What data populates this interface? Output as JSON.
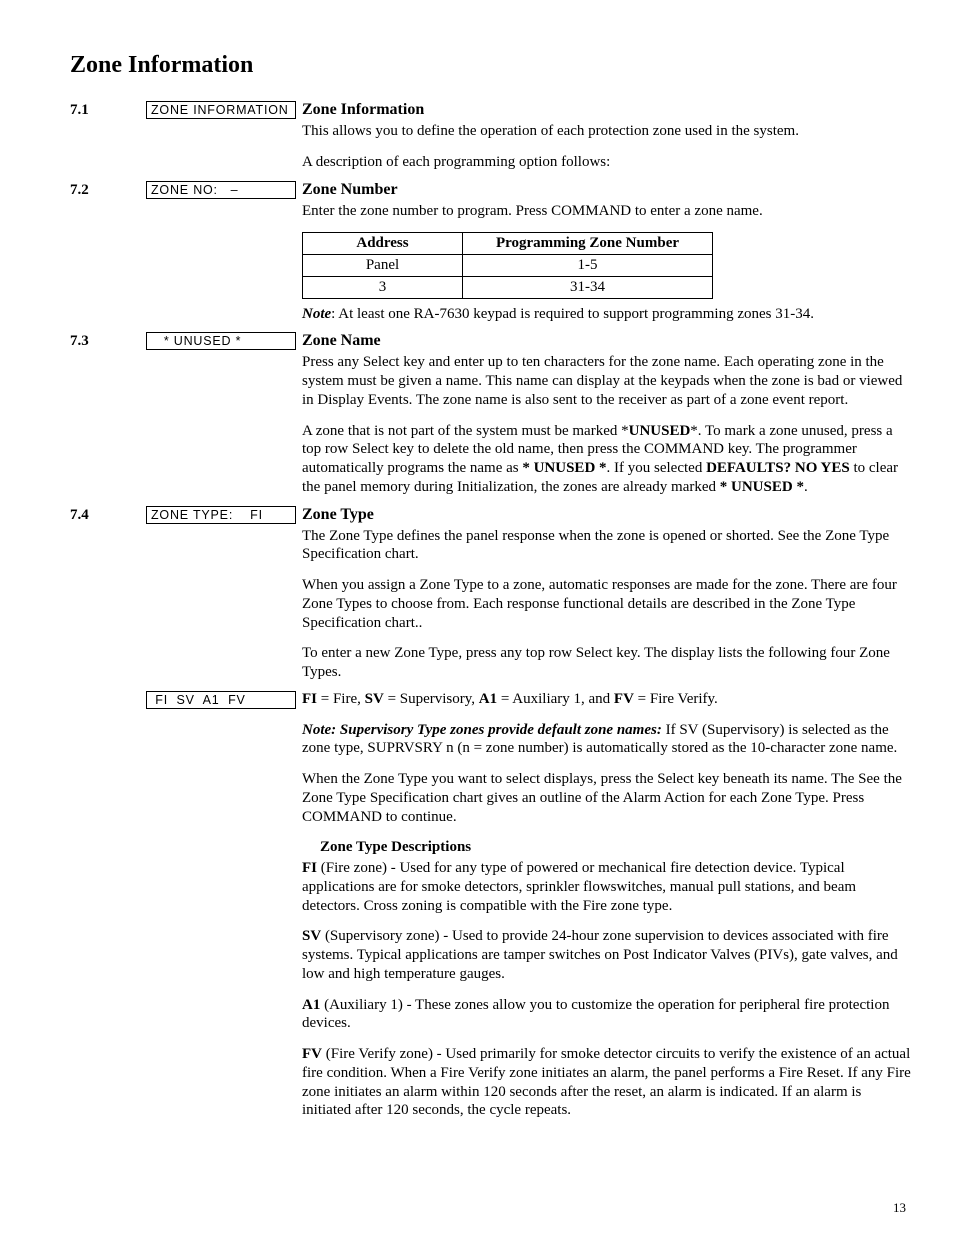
{
  "page_title": "Zone Information",
  "page_number": "13",
  "sections": {
    "s71": {
      "num": "7.1",
      "lcd": "ZONE INFORMATION",
      "heading": "Zone Information",
      "p1": "This allows you to define the operation of each protection zone used in the system.",
      "p2": "A description of each programming option follows:"
    },
    "s72": {
      "num": "7.2",
      "lcd": "ZONE NO:   –",
      "heading": "Zone Number",
      "p1": "Enter the zone number to program.  Press COMMAND to enter a zone name.",
      "table": {
        "h1": "Address",
        "h2": "Programming Zone Number",
        "r1c1": "Panel",
        "r1c2": "1-5",
        "r2c1": "3",
        "r2c2": "31-34"
      },
      "note_label": "Note",
      "note_rest": ": At least one RA-7630 keypad is required to support programming zones 31-34."
    },
    "s73": {
      "num": "7.3",
      "lcd": "   * UNUSED *",
      "heading": "Zone Name",
      "p1": "Press any Select key and enter up to ten characters for the zone name. Each operating zone in the system must be given a name. This name can display at the keypads when the zone is bad or viewed in Display Events. The zone name is also sent to the receiver as part of a zone event report.",
      "p2a": "A zone that is not part of the system must be marked *",
      "p2b": "UNUSED",
      "p2c": "*. To mark a zone unused, press a top row Select key to delete the old name, then press the COMMAND key. The programmer automatically programs the name as ",
      "p2d": "* UNUSED *",
      "p2e": ". If you selected ",
      "p2f": "DEFAULTS? NO YES",
      "p2g": " to clear the panel memory during Initialization, the zones are already marked ",
      "p2h": "* UNUSED *",
      "p2i": "."
    },
    "s74": {
      "num": "7.4",
      "lcd": "ZONE TYPE:    FI",
      "heading": "Zone Type",
      "p1": "The Zone Type defines the panel response when the zone is opened or shorted. See the Zone Type Specification chart.",
      "p2": "When you assign a Zone Type to a zone, automatic responses are made for the zone. There are four Zone Types to choose from. Each response functional details are described in the Zone Type Specification chart..",
      "p3": "To enter a new Zone Type, press any top row Select key. The display lists the following four Zone Types.",
      "lcd2": " FI  SV  A1  FV",
      "legend_FI": "FI",
      "legend_FI_t": " = Fire, ",
      "legend_SV": "SV",
      "legend_SV_t": " = Supervisory, ",
      "legend_A1": "A1",
      "legend_A1_t": " = Auxiliary 1, and ",
      "legend_FV": "FV",
      "legend_FV_t": " = Fire Verify.",
      "note2_b": "Note",
      "note2_bi": ": Supervisory Type zones provide default zone names:",
      "note2_rest": " If SV (Supervisory) is selected as the zone type, SUPRVSRY  n (n = zone number) is automatically stored as the 10-character zone name.",
      "p5": "When the Zone Type you want to select displays, press the Select key beneath its name. The See the Zone Type Specification chart gives an outline of the Alarm Action for each Zone Type. Press COMMAND to continue.",
      "subhead": "Zone Type Descriptions",
      "d_FI_b": "FI",
      "d_FI": " (Fire zone) - Used for any type of powered or mechanical fire detection device. Typical applications are for smoke detectors, sprinkler flowswitches, manual pull stations, and beam detectors. Cross zoning is compatible with the Fire zone type.",
      "d_SV_b": "SV",
      "d_SV": " (Supervisory zone) - Used to provide 24-hour zone supervision to devices associated with fire systems. Typical applications are tamper switches on Post Indicator Valves (PIVs), gate valves, and low and high temperature gauges.",
      "d_A1_b": "A1",
      "d_A1": " (Auxiliary 1) - These zones allow you to customize the operation for peripheral fire protection devices.",
      "d_FV_b": "FV",
      "d_FV": " (Fire Verify zone) - Used primarily for smoke detector circuits to verify the existence of an actual fire condition. When a Fire Verify zone initiates an alarm, the panel performs a Fire Reset. If any Fire zone initiates an alarm within 120 seconds after the reset, an alarm is indicated. If an alarm is initiated after 120 seconds, the cycle repeats."
    }
  }
}
